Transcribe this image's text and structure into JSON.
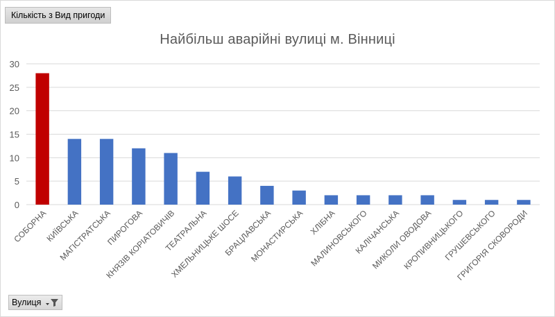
{
  "field_buttons": {
    "value_field": "Кількість з Вид пригоди",
    "axis_field": "Вулиця"
  },
  "chart_data": {
    "type": "bar",
    "title": "Найбільш аварійні вулиці м. Вінниці",
    "categories": [
      "СОБОРНА",
      "КИЇВСЬКА",
      "МАГІСТРАТСЬКА",
      "ПИРОГОВА",
      "КНЯЗІВ КОРІАТОВИЧІВ",
      "ТЕАТРАЛЬНА",
      "ХМЕЛЬНИЦЬКЕ ШОСЕ",
      "БРАЦЛАВСЬКА",
      "МОНАСТИРСЬКА",
      "ХЛІБНА",
      "МАЛИНОВСЬКОГО",
      "КАЛІЧАНСЬКА",
      "МИКОЛИ ОВОДОВА",
      "КРОПИВНИЦЬКОГО",
      "ГРУШЕВСЬКОГО",
      "ГРИГОРІЯ СКОВОРОДИ"
    ],
    "values": [
      28,
      14,
      14,
      12,
      11,
      7,
      6,
      4,
      3,
      2,
      2,
      2,
      2,
      1,
      1,
      1
    ],
    "ylim": [
      0,
      30
    ],
    "yticks": [
      0,
      5,
      10,
      15,
      20,
      25,
      30
    ],
    "grid": true,
    "legend": "none",
    "colors": {
      "default_bar": "#4472c4",
      "highlight_bar": "#c00000",
      "grid": "#d9d9d9",
      "axis_text": "#595959"
    },
    "highlight_index": 0
  }
}
